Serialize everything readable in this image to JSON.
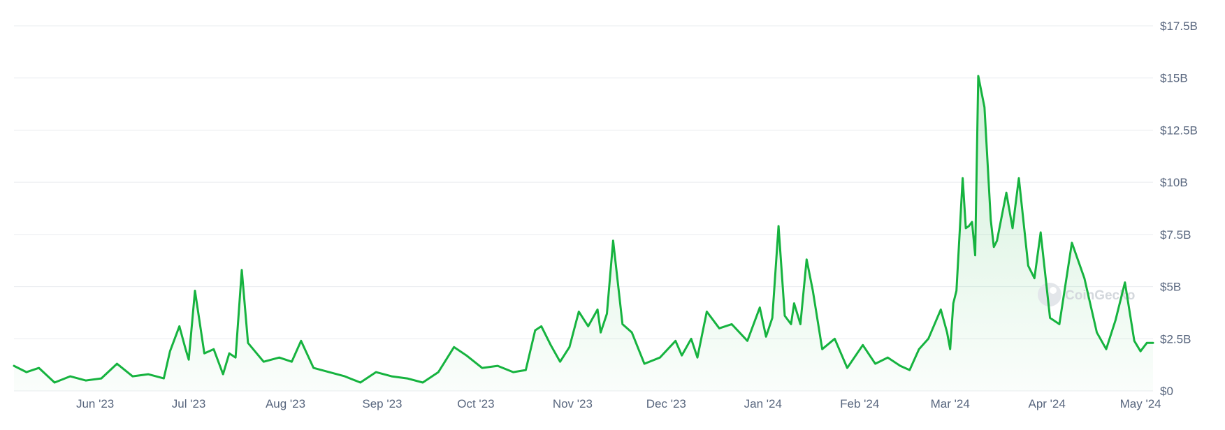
{
  "watermark": "CoinGecko",
  "colors": {
    "line": "#16b33f",
    "area_top": "#16b33f",
    "grid": "#e9ecef",
    "axis_text": "#58667e"
  },
  "chart_data": {
    "type": "area",
    "title": "",
    "xlabel": "",
    "ylabel": "",
    "x_range": [
      "2023-05-06",
      "2024-05-05"
    ],
    "ylim": [
      0,
      17.5
    ],
    "y_unit": "billion USD",
    "y_ticks": [
      {
        "value": 0,
        "label": "$0"
      },
      {
        "value": 2.5,
        "label": "$2.5B"
      },
      {
        "value": 5,
        "label": "$5B"
      },
      {
        "value": 7.5,
        "label": "$7.5B"
      },
      {
        "value": 10,
        "label": "$10B"
      },
      {
        "value": 12.5,
        "label": "$12.5B"
      },
      {
        "value": 15,
        "label": "$15B"
      },
      {
        "value": 17.5,
        "label": "$17.5B"
      }
    ],
    "x_ticks": [
      {
        "date": "2023-06-01",
        "label": "Jun '23"
      },
      {
        "date": "2023-07-01",
        "label": "Jul '23"
      },
      {
        "date": "2023-08-01",
        "label": "Aug '23"
      },
      {
        "date": "2023-09-01",
        "label": "Sep '23"
      },
      {
        "date": "2023-10-01",
        "label": "Oct '23"
      },
      {
        "date": "2023-11-01",
        "label": "Nov '23"
      },
      {
        "date": "2023-12-01",
        "label": "Dec '23"
      },
      {
        "date": "2024-01-01",
        "label": "Jan '24"
      },
      {
        "date": "2024-02-01",
        "label": "Feb '24"
      },
      {
        "date": "2024-03-01",
        "label": "Mar '24"
      },
      {
        "date": "2024-04-01",
        "label": "Apr '24"
      },
      {
        "date": "2024-05-01",
        "label": "May '24"
      }
    ],
    "grid": true,
    "legend": "none",
    "series": [
      {
        "x": [
          "2023-05-06",
          "2023-05-10",
          "2023-05-14",
          "2023-05-19",
          "2023-05-24",
          "2023-05-29",
          "2023-06-03",
          "2023-06-08",
          "2023-06-13",
          "2023-06-18",
          "2023-06-23",
          "2023-06-25",
          "2023-06-28",
          "2023-06-30",
          "2023-07-01",
          "2023-07-03",
          "2023-07-06",
          "2023-07-09",
          "2023-07-12",
          "2023-07-14",
          "2023-07-16",
          "2023-07-18",
          "2023-07-20",
          "2023-07-25",
          "2023-07-30",
          "2023-08-03",
          "2023-08-06",
          "2023-08-10",
          "2023-08-15",
          "2023-08-20",
          "2023-08-25",
          "2023-08-30",
          "2023-09-04",
          "2023-09-09",
          "2023-09-14",
          "2023-09-19",
          "2023-09-24",
          "2023-09-28",
          "2023-10-03",
          "2023-10-08",
          "2023-10-13",
          "2023-10-17",
          "2023-10-20",
          "2023-10-22",
          "2023-10-25",
          "2023-10-28",
          "2023-10-31",
          "2023-11-03",
          "2023-11-06",
          "2023-11-09",
          "2023-11-10",
          "2023-11-12",
          "2023-11-14",
          "2023-11-17",
          "2023-11-20",
          "2023-11-24",
          "2023-11-29",
          "2023-12-04",
          "2023-12-06",
          "2023-12-09",
          "2023-12-11",
          "2023-12-14",
          "2023-12-18",
          "2023-12-22",
          "2023-12-27",
          "2023-12-31",
          "2024-01-02",
          "2024-01-04",
          "2024-01-06",
          "2024-01-08",
          "2024-01-10",
          "2024-01-11",
          "2024-01-13",
          "2024-01-15",
          "2024-01-17",
          "2024-01-20",
          "2024-01-24",
          "2024-01-28",
          "2024-02-02",
          "2024-02-06",
          "2024-02-10",
          "2024-02-14",
          "2024-02-17",
          "2024-02-20",
          "2024-02-23",
          "2024-02-27",
          "2024-02-29",
          "2024-03-01",
          "2024-03-02",
          "2024-03-03",
          "2024-03-05",
          "2024-03-06",
          "2024-03-07",
          "2024-03-08",
          "2024-03-09",
          "2024-03-10",
          "2024-03-12",
          "2024-03-14",
          "2024-03-15",
          "2024-03-16",
          "2024-03-19",
          "2024-03-21",
          "2024-03-23",
          "2024-03-26",
          "2024-03-28",
          "2024-03-30",
          "2024-04-02",
          "2024-04-05",
          "2024-04-09",
          "2024-04-13",
          "2024-04-17",
          "2024-04-20",
          "2024-04-23",
          "2024-04-26",
          "2024-04-29",
          "2024-05-01",
          "2024-05-03",
          "2024-05-05"
        ],
        "y": [
          1.2,
          0.9,
          1.1,
          0.4,
          0.7,
          0.5,
          0.6,
          1.3,
          0.7,
          0.8,
          0.6,
          1.9,
          3.1,
          2.0,
          1.5,
          4.8,
          1.8,
          2.0,
          0.8,
          1.8,
          1.6,
          5.8,
          2.3,
          1.4,
          1.6,
          1.4,
          2.4,
          1.1,
          0.9,
          0.7,
          0.4,
          0.9,
          0.7,
          0.6,
          0.4,
          0.9,
          2.1,
          1.7,
          1.1,
          1.2,
          0.9,
          1.0,
          2.9,
          3.1,
          2.2,
          1.4,
          2.1,
          3.8,
          3.1,
          3.9,
          2.8,
          3.7,
          7.2,
          3.2,
          2.8,
          1.3,
          1.6,
          2.4,
          1.7,
          2.5,
          1.6,
          3.8,
          3.0,
          3.2,
          2.4,
          4.0,
          2.6,
          3.5,
          7.9,
          3.6,
          3.2,
          4.2,
          3.2,
          6.3,
          4.8,
          2.0,
          2.5,
          1.1,
          2.2,
          1.3,
          1.6,
          1.2,
          1.0,
          2.0,
          2.5,
          3.9,
          2.8,
          2.0,
          4.2,
          4.8,
          10.2,
          7.8,
          7.9,
          8.1,
          6.5,
          15.1,
          13.6,
          8.2,
          6.9,
          7.2,
          9.5,
          7.8,
          10.2,
          6.0,
          5.4,
          7.6,
          3.5,
          3.2,
          7.1,
          5.4,
          2.8,
          2.0,
          3.4,
          5.2,
          2.4,
          1.9,
          2.3,
          2.3
        ]
      }
    ]
  }
}
